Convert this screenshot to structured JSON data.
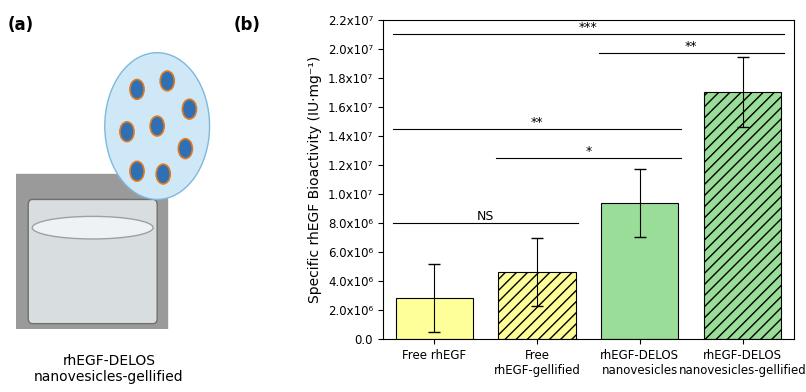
{
  "image_panel": {
    "panel_label": "(a)",
    "caption": "rhEGF-DELOS\nnanovesicles-gellified"
  },
  "chart_data": {
    "type": "bar",
    "panel_label": "(b)",
    "y_label": "Specific rhEGF Bioactivity (IU·mg⁻¹)",
    "categories": [
      "Free rhEGF",
      "Free\nrhEGF-gellified",
      "rhEGF-DELOS\nnanovesicles",
      "rhEGF-DELOS\nnanovesicles-gellified"
    ],
    "values": [
      2850000,
      4600000,
      9350000,
      17000000
    ],
    "errors": [
      2350000,
      2350000,
      2350000,
      2400000
    ],
    "colors": [
      "#ffff99",
      "#ffff99",
      "#99dd99",
      "#99dd99"
    ],
    "ylim": [
      0,
      22000000
    ],
    "yticks": [
      {
        "value": 0,
        "label": "0.0"
      },
      {
        "value": 2000000,
        "label": "2.0x10⁶"
      },
      {
        "value": 4000000,
        "label": "4.0x10⁶"
      },
      {
        "value": 6000000,
        "label": "6.0x10⁶"
      },
      {
        "value": 8000000,
        "label": "8.0x10⁶"
      },
      {
        "value": 10000000,
        "label": "1.0x10⁷"
      },
      {
        "value": 12000000,
        "label": "1.2x10⁷"
      },
      {
        "value": 14000000,
        "label": "1.4x10⁷"
      },
      {
        "value": 16000000,
        "label": "1.6x10⁷"
      },
      {
        "value": 18000000,
        "label": "1.8x10⁷"
      },
      {
        "value": 20000000,
        "label": "2.0x10⁷"
      },
      {
        "value": 22000000,
        "label": "2.2x10⁷"
      }
    ],
    "annotations": [
      {
        "from": 0,
        "to": 1,
        "y": 8000000,
        "label": "NS"
      },
      {
        "from": 1,
        "to": 2,
        "y": 12500000,
        "label": "*"
      },
      {
        "from": 0,
        "to": 2,
        "y": 14500000,
        "label": "**"
      },
      {
        "from": 2,
        "to": 3,
        "y": 19700000,
        "label": "**"
      },
      {
        "from": 0,
        "to": 3,
        "y": 21000000,
        "label": "***"
      }
    ],
    "grid": false
  }
}
